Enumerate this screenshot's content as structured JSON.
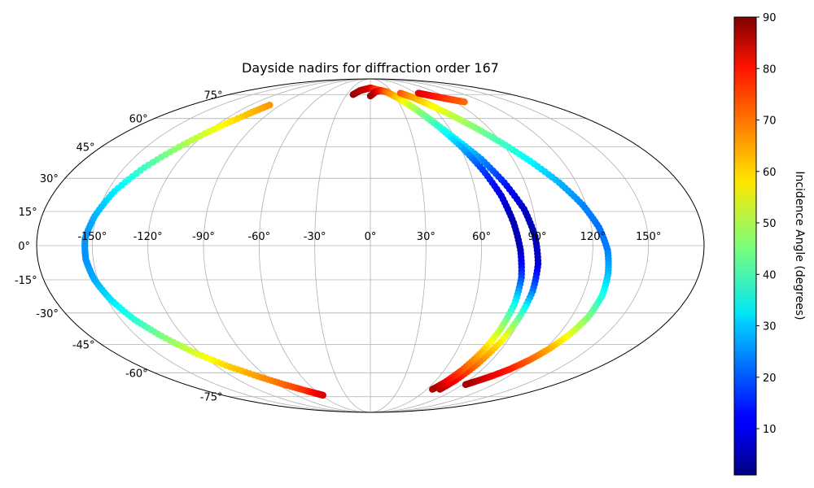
{
  "chart_data": {
    "type": "scatter",
    "projection": "mollweide",
    "title": "Dayside nadirs for diffraction order 167",
    "xlabel": "",
    "ylabel": "",
    "grid": true,
    "lon_ticks": [
      -150,
      -120,
      -90,
      -60,
      -30,
      0,
      30,
      60,
      90,
      120,
      150
    ],
    "lon_tick_labels": [
      "-150°",
      "-120°",
      "-90°",
      "-60°",
      "-30°",
      "0°",
      "30°",
      "60°",
      "90°",
      "120°",
      "150°"
    ],
    "lat_ticks": [
      -75,
      -60,
      -45,
      -30,
      -15,
      0,
      15,
      30,
      45,
      60,
      75
    ],
    "lat_tick_labels": [
      "-75°",
      "-60°",
      "-45°",
      "-30°",
      "-15°",
      "0°",
      "15°",
      "30°",
      "45°",
      "60°",
      "75°"
    ],
    "colorbar": {
      "label": "Incidence Angle (degrees)",
      "colormap": "jet",
      "range": [
        1,
        90
      ],
      "ticks": [
        10,
        20,
        30,
        40,
        50,
        60,
        70,
        80,
        90
      ],
      "tick_labels": [
        "10",
        "20",
        "30",
        "40",
        "50",
        "60",
        "70",
        "80",
        "90"
      ]
    },
    "series": [
      {
        "lon": [
          -101,
          -108,
          -118,
          -128,
          -138,
          -146,
          -151,
          -154,
          -154,
          -152,
          -148,
          -142,
          -134,
          -124,
          -112,
          -98,
          -84,
          -70,
          -62,
          -58
        ],
        "lat": [
          68,
          62,
          54,
          45,
          35,
          24,
          13,
          3,
          -6,
          -15,
          -24,
          -33,
          -41,
          -49,
          -56,
          -62,
          -67,
          -71,
          -73,
          -74
        ],
        "incidence": [
          66,
          62,
          55,
          48,
          40,
          33,
          28,
          25,
          25,
          27,
          32,
          38,
          45,
          53,
          60,
          65,
          70,
          75,
          80,
          82
        ]
      },
      {
        "lon": [
          -22,
          -15,
          -8,
          0,
          8,
          15,
          22,
          30,
          40,
          50,
          60,
          70,
          78,
          85,
          89,
          91,
          91,
          89,
          86,
          82,
          78,
          74
        ],
        "lat": [
          75,
          78,
          79,
          80,
          79,
          78,
          77,
          74,
          68,
          59,
          49,
          39,
          28,
          16,
          4,
          -8,
          -20,
          -32,
          -44,
          -55,
          -64,
          -70
        ],
        "incidence": [
          88,
          86,
          84,
          82,
          75,
          70,
          66,
          62,
          55,
          45,
          35,
          25,
          15,
          7,
          5,
          8,
          22,
          42,
          58,
          68,
          78,
          85
        ]
      },
      {
        "lon": [
          0,
          7,
          15,
          23,
          33,
          43,
          53,
          61,
          68,
          74,
          78,
          81,
          83,
          83,
          81,
          78,
          74,
          70,
          66
        ],
        "lat": [
          74,
          77,
          78,
          77,
          72,
          65,
          55,
          45,
          34,
          22,
          10,
          -2,
          -14,
          -26,
          -38,
          -49,
          -59,
          -66,
          -70
        ],
        "incidence": [
          88,
          85,
          78,
          70,
          60,
          48,
          38,
          28,
          18,
          10,
          5,
          6,
          18,
          35,
          50,
          62,
          72,
          80,
          86
        ]
      },
      {
        "lon": [
          40,
          50,
          60,
          70,
          80,
          90,
          100,
          110,
          118,
          124,
          128,
          130,
          131,
          130,
          127,
          123,
          118,
          112,
          105,
          98,
          93
        ],
        "lat": [
          76,
          73,
          68,
          62,
          55,
          47,
          38,
          28,
          18,
          8,
          -2,
          -12,
          -22,
          -32,
          -40,
          -47,
          -53,
          -58,
          -62,
          -65,
          -67
        ],
        "incidence": [
          72,
          65,
          58,
          52,
          46,
          40,
          34,
          28,
          24,
          22,
          23,
          28,
          36,
          45,
          54,
          63,
          70,
          76,
          80,
          84,
          87
        ]
      },
      {
        "lon": [
          64,
          70,
          76,
          82,
          88,
          94,
          100
        ],
        "lat": [
          76,
          75,
          74,
          73,
          72,
          71,
          70
        ],
        "incidence": [
          82,
          80,
          78,
          76,
          74,
          72,
          70
        ]
      }
    ]
  }
}
